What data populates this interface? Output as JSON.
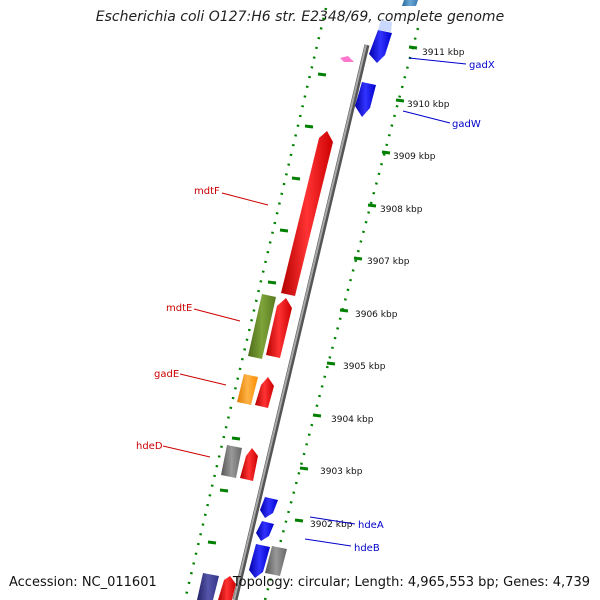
{
  "title": "Escherichia coli O127:H6 str. E2348/69, complete genome",
  "accession": "Accession: NC_011601",
  "topology": "Topology: circular; Length: 4,965,553 bp; Genes: 4,739",
  "ticks": [
    {
      "label": "3911 kbp"
    },
    {
      "label": "3910 kbp"
    },
    {
      "label": "3909 kbp"
    },
    {
      "label": "3908 kbp"
    },
    {
      "label": "3907 kbp"
    },
    {
      "label": "3906 kbp"
    },
    {
      "label": "3905 kbp"
    },
    {
      "label": "3904 kbp"
    },
    {
      "label": "3903 kbp"
    },
    {
      "label": "3902 kbp"
    }
  ],
  "genes": [
    {
      "name": "gadX",
      "color": "#0000cc"
    },
    {
      "name": "gadW",
      "color": "#0000cc"
    },
    {
      "name": "mdtF",
      "color": "#cc0000"
    },
    {
      "name": "mdtE",
      "color": "#cc0000"
    },
    {
      "name": "gadE",
      "color": "#cc0000"
    },
    {
      "name": "hdeD",
      "color": "#cc0000"
    },
    {
      "name": "hdeA",
      "color": "#0000cc"
    },
    {
      "name": "hdeB",
      "color": "#0000cc"
    }
  ],
  "feature_colors": {
    "backbone": "#8a8a8a",
    "forward_cds": "#ff0000",
    "reverse_cds": "#0000ff",
    "olive": "#6b8e23",
    "orange": "#ff9900",
    "gray": "#7a7a7a",
    "pink": "#ff66cc",
    "navy": "#333399",
    "tick_dots": "#008000"
  }
}
